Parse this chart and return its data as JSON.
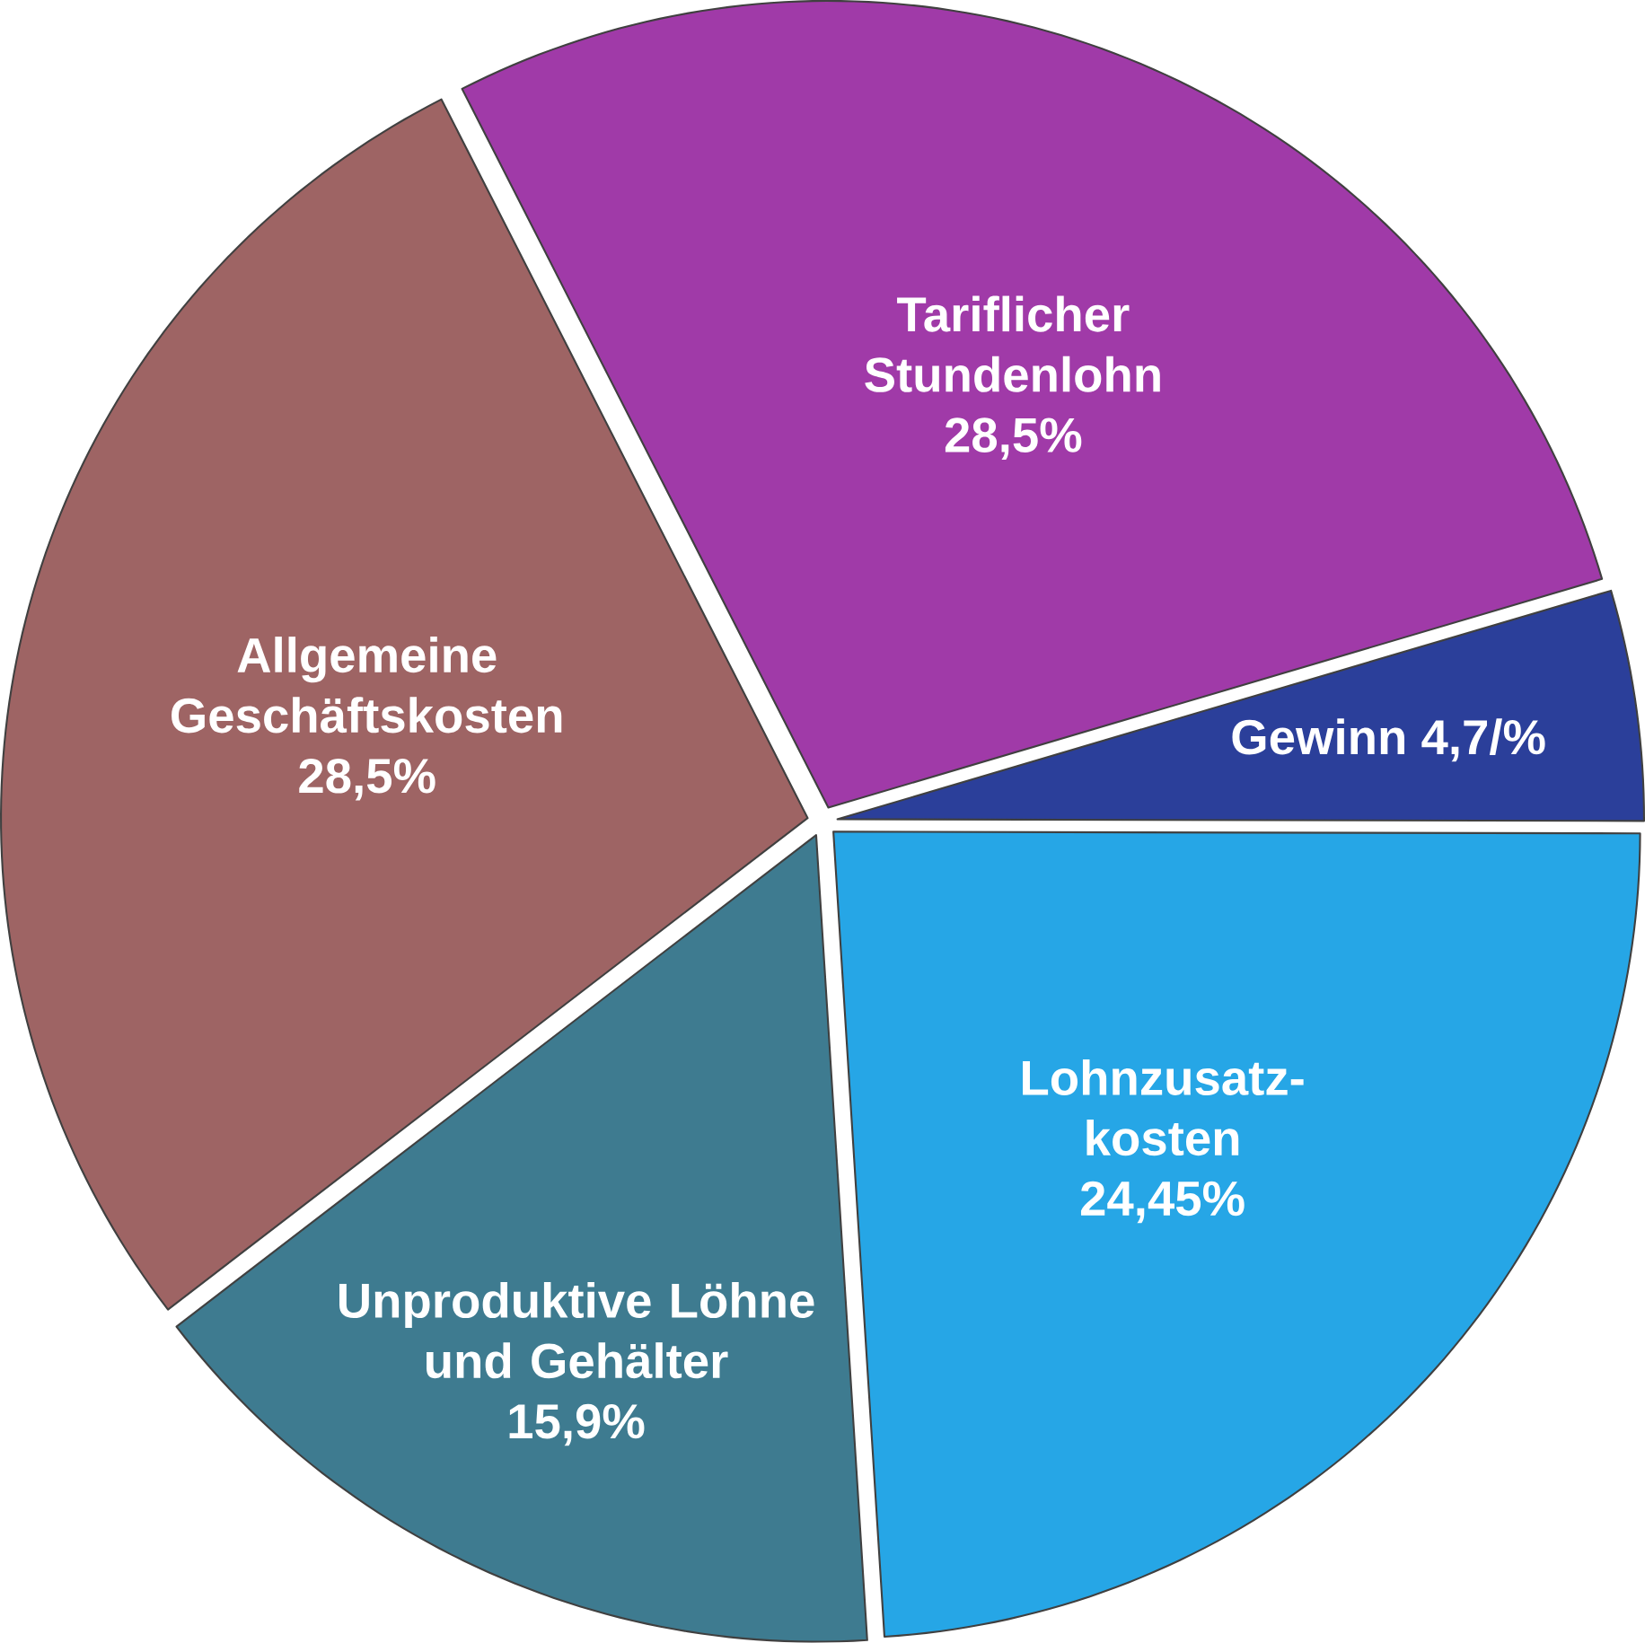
{
  "chart_data": {
    "type": "pie",
    "categories": [
      "Tariflicher Stundenlohn",
      "Gewinn",
      "Lohnzusatz-kosten",
      "Unproduktive Löhne und Gehälter",
      "Allgemeine Geschäftskosten"
    ],
    "values": [
      28.5,
      4.7,
      24.45,
      15.9,
      28.5
    ],
    "value_labels": [
      "28,5%",
      "4,7/%",
      "24,45%",
      "15,9%",
      "28,5%"
    ],
    "colors": [
      "#a03aa8",
      "#2b3f9a",
      "#26a6e6",
      "#3e7b90",
      "#9e6464"
    ]
  }
}
